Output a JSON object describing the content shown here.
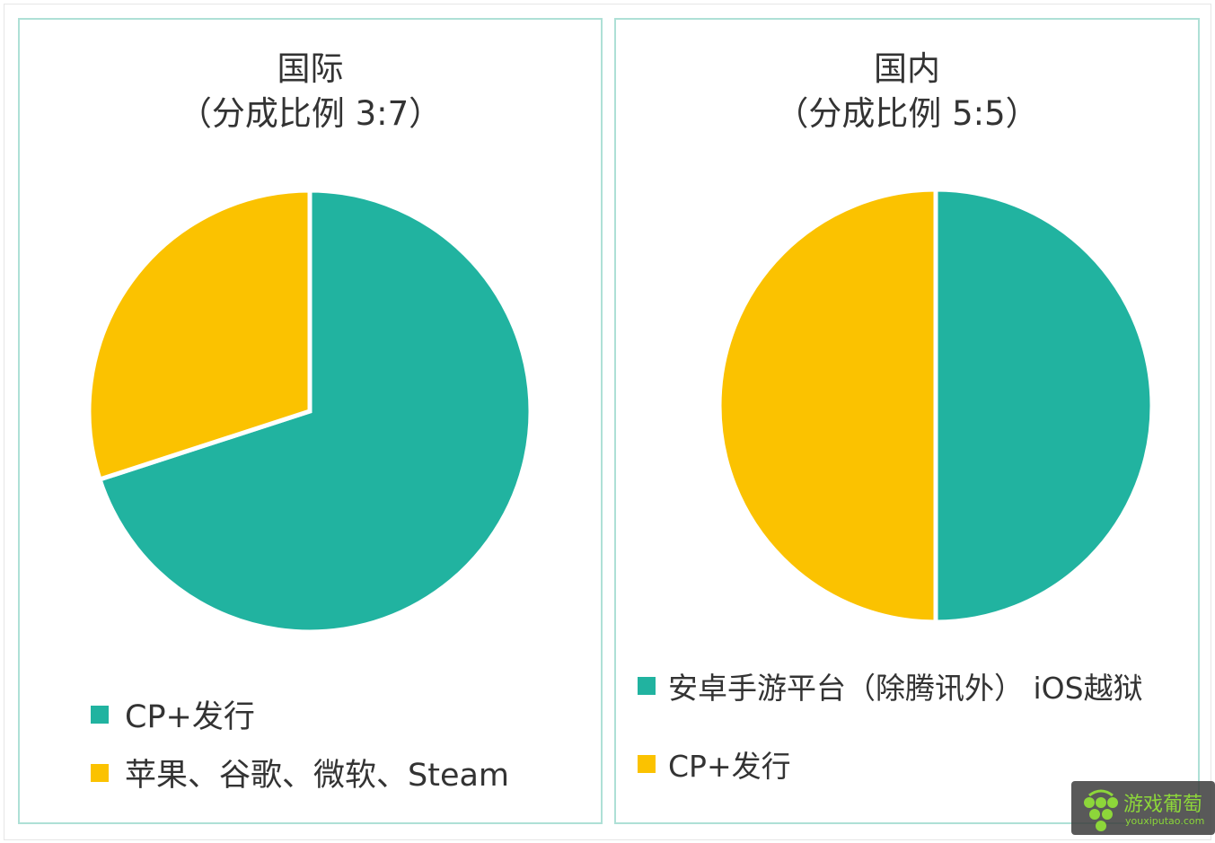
{
  "colors": {
    "teal": "#21b3a0",
    "yellow": "#fbc200"
  },
  "chart_data": [
    {
      "type": "pie",
      "title": "国际",
      "subtitle": "（分成比例 3:7）",
      "slices": [
        {
          "label": "CP+发行",
          "value": 70,
          "color": "#21b3a0"
        },
        {
          "label": "苹果、谷歌、微软、Steam",
          "value": 30,
          "color": "#fbc200"
        }
      ],
      "legend": "bottom-left"
    },
    {
      "type": "pie",
      "title": "国内",
      "subtitle": "（分成比例 5:5）",
      "slices": [
        {
          "label": "安卓手游平台（除腾讯外） iOS越狱",
          "value": 50,
          "color": "#21b3a0"
        },
        {
          "label": "CP+发行",
          "value": 50,
          "color": "#fbc200"
        }
      ],
      "legend": "bottom-left"
    }
  ],
  "watermark": {
    "cn": "游戏葡萄",
    "en": "youxiputao.com"
  }
}
